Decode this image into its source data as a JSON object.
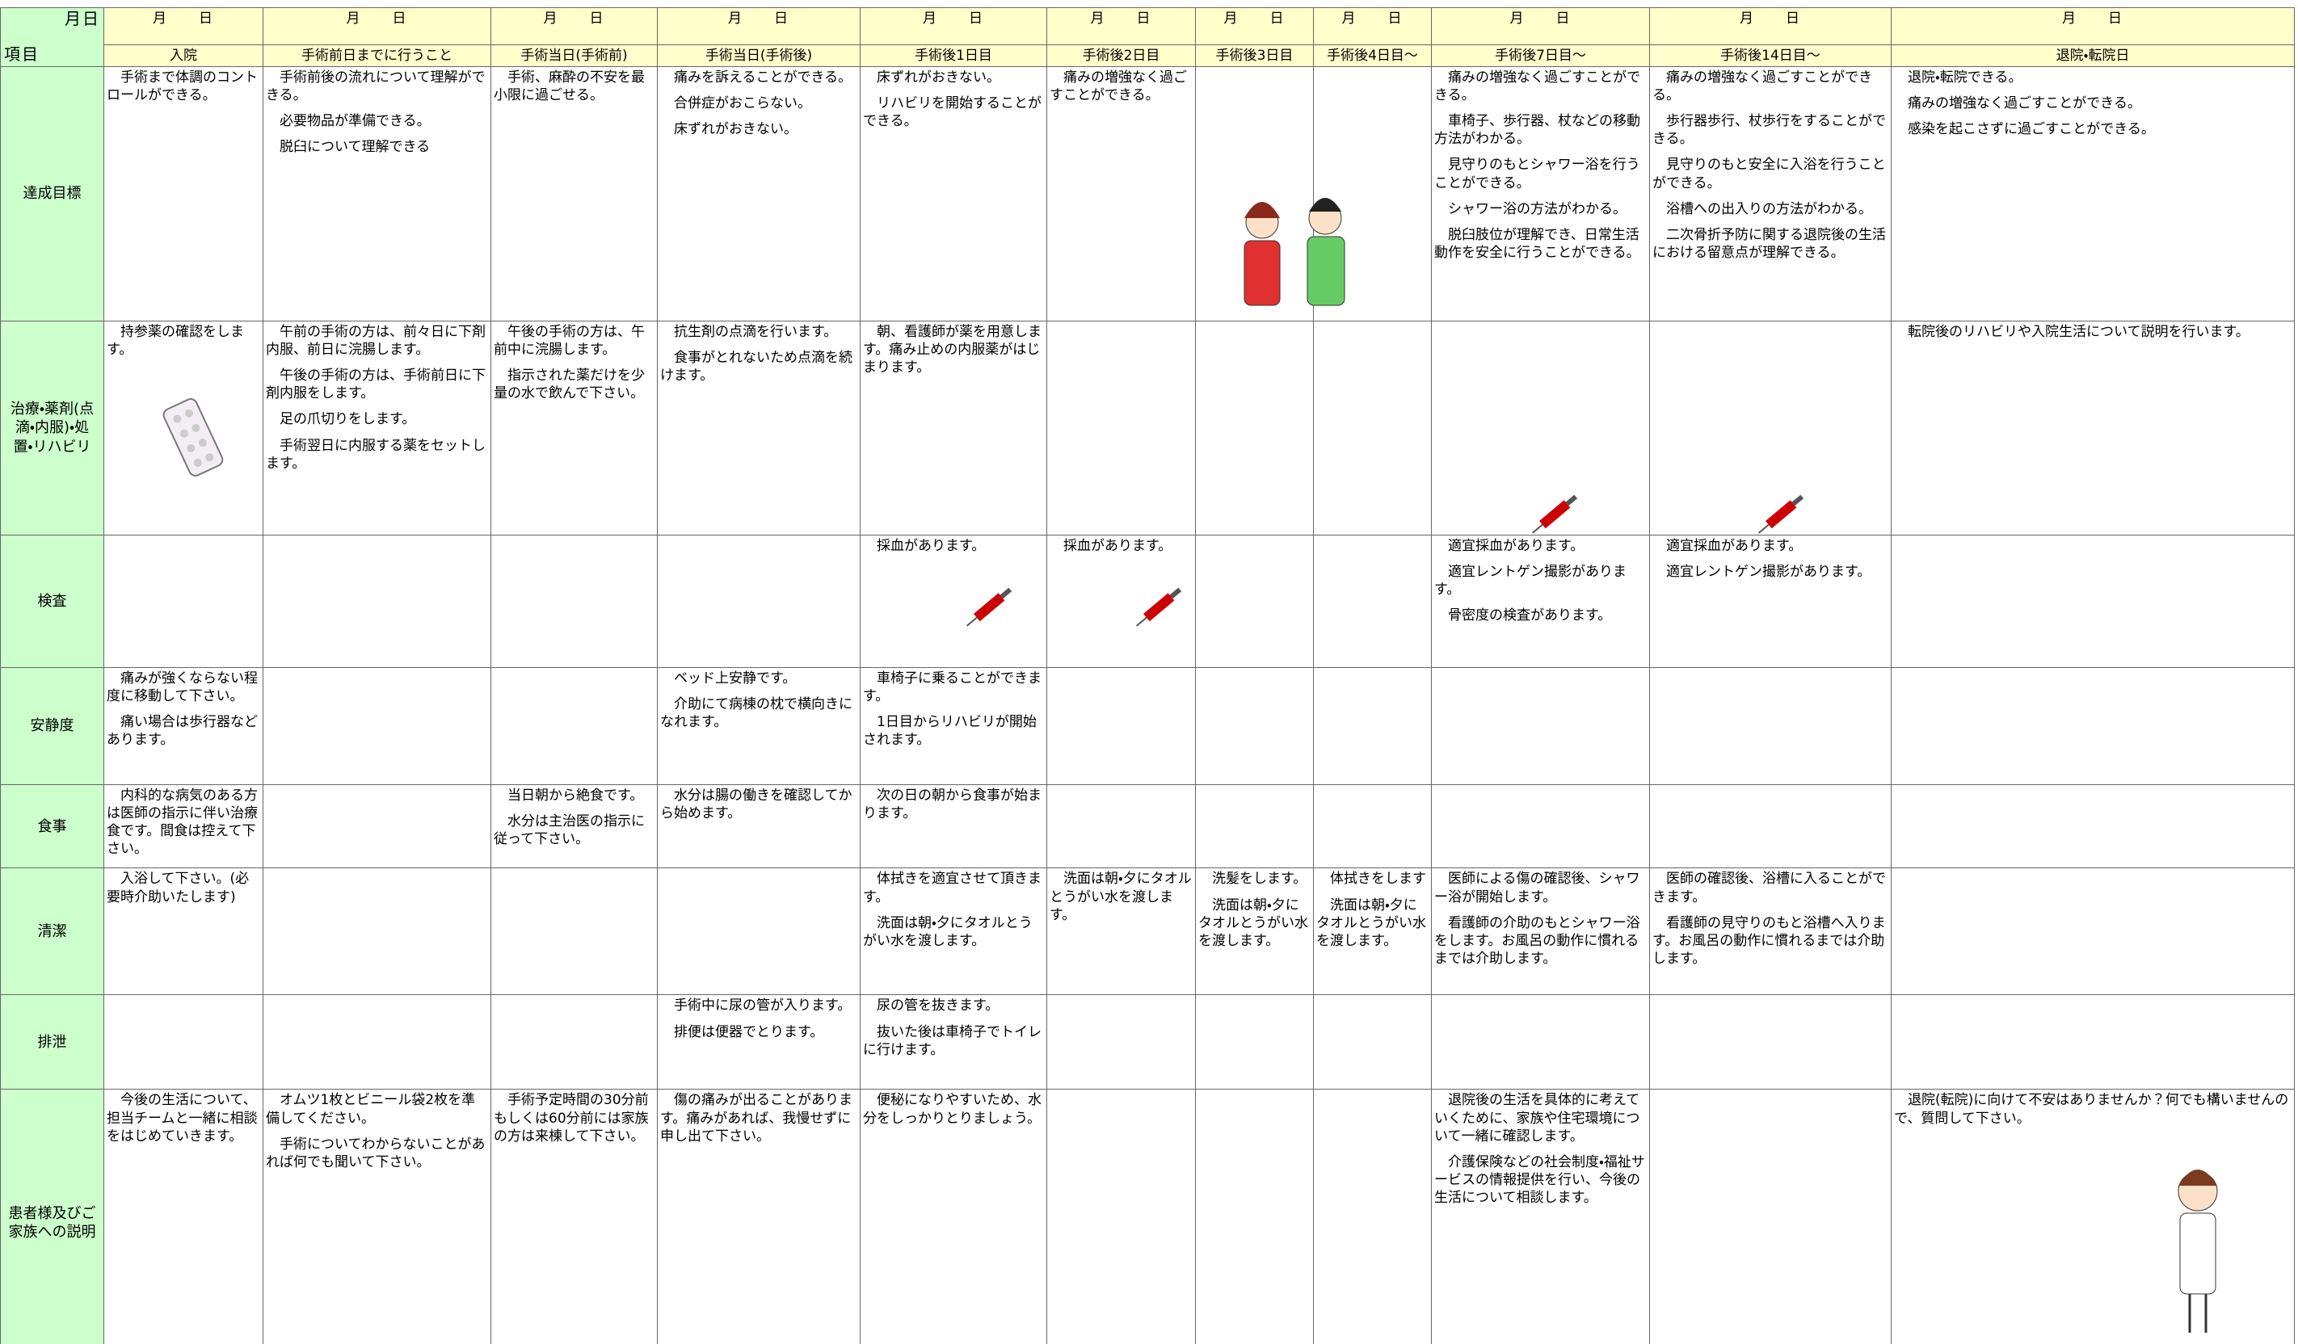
{
  "header": {
    "corner_top": "月日",
    "corner_bottom": "項目",
    "columns": [
      {
        "date": "月　　日",
        "title": "入院"
      },
      {
        "date": "月　　日",
        "title": "手術前日までに行うこと"
      },
      {
        "date": "月　　日",
        "title": "手術当日(手術前)"
      },
      {
        "date": "月　　日",
        "title": "手術当日(手術後)"
      },
      {
        "date": "月　　日",
        "title": "手術後1日目"
      },
      {
        "date": "月　　日",
        "title": "手術後2日目"
      },
      {
        "date": "月　　日",
        "title": "手術後3日目"
      },
      {
        "date": "月　　日",
        "title": "手術後4日目～"
      },
      {
        "date": "月　　日",
        "title": "手術後7日目～"
      },
      {
        "date": "月　　日",
        "title": "手術後14日目～"
      },
      {
        "date": "月　　日",
        "title": "退院・転院日"
      }
    ]
  },
  "rows": [
    {
      "label": "達成目標",
      "cells": [
        [
          "手術まで体調のコントロールができる。"
        ],
        [
          "手術前後の流れについて理解ができる。",
          "必要物品が準備できる。",
          "脱臼について理解できる"
        ],
        [
          "手術、麻酔の不安を最小限に過ごせる。"
        ],
        [
          "痛みを訴えることができる。",
          "合併症がおこらない。",
          "床ずれがおきない。"
        ],
        [
          "床ずれがおきない。",
          "リハビリを開始することができる。"
        ],
        [
          "痛みの増強なく過ごすことができる。"
        ],
        [],
        [],
        [
          "痛みの増強なく過ごすことができる。",
          "車椅子、歩行器、杖などの移動方法がわかる。",
          "見守りのもとシャワー浴を行うことができる。",
          "シャワー浴の方法がわかる。",
          "脱臼肢位が理解でき、日常生活動作を安全に行うことができる。"
        ],
        [
          "痛みの増強なく過ごすことができる。",
          "歩行器歩行、杖歩行をすることができる。",
          "見守りのもと安全に入浴を行うことができる。",
          "浴槽への出入りの方法がわかる。",
          "二次骨折予防に関する退院後の生活における留意点が理解できる。"
        ],
        [
          "退院・転院できる。",
          "痛みの増強なく過ごすことができる。",
          "感染を起こさずに過ごすことができる。"
        ]
      ]
    },
    {
      "label": "治療・薬剤(点滴・内服)・処置・リハビリ",
      "cells": [
        [
          "持参薬の確認をします。"
        ],
        [
          "午前の手術の方は、前々日に下剤内服、前日に浣腸します。",
          "午後の手術の方は、手術前日に下剤内服をします。",
          "足の爪切りをします。",
          "手術翌日に内服する薬をセットします。"
        ],
        [
          "午後の手術の方は、午前中に浣腸します。",
          "指示された薬だけを少量の水で飲んで下さい。"
        ],
        [
          "抗生剤の点滴を行います。",
          "食事がとれないため点滴を続けます。"
        ],
        [
          "朝、看護師が薬を用意します。痛み止めの内服薬がはじまります。"
        ],
        [],
        [],
        [],
        [],
        [],
        [
          "転院後のリハビリや入院生活について説明を行います。"
        ]
      ]
    },
    {
      "label": "検査",
      "cells": [
        [],
        [],
        [],
        [],
        [
          "採血があります。"
        ],
        [
          "採血があります。"
        ],
        [],
        [],
        [
          "適宜採血があります。",
          "適宜レントゲン撮影があります。",
          "骨密度の検査があります。"
        ],
        [
          "適宜採血があります。",
          "適宜レントゲン撮影があります。"
        ],
        []
      ]
    },
    {
      "label": "安静度",
      "cells": [
        [
          "痛みが強くならない程度に移動して下さい。",
          "痛い場合は歩行器などあります。"
        ],
        [],
        [],
        [
          "ベッド上安静です。",
          "介助にて病棟の枕で横向きになれます。"
        ],
        [
          "車椅子に乗ることができます。",
          "1日目からリハビリが開始されます。"
        ],
        [],
        [],
        [],
        [],
        [],
        []
      ]
    },
    {
      "label": "食事",
      "cells": [
        [
          "内科的な病気のある方は医師の指示に伴い治療食です。間食は控えて下さい。"
        ],
        [],
        [
          "当日朝から絶食です。",
          "水分は主治医の指示に従って下さい。"
        ],
        [
          "水分は腸の働きを確認してから始めます。"
        ],
        [
          "次の日の朝から食事が始まります。"
        ],
        [],
        [],
        [],
        [],
        [],
        []
      ]
    },
    {
      "label": "清潔",
      "cells": [
        [
          "入浴して下さい。(必要時介助いたします)"
        ],
        [],
        [],
        [],
        [
          "体拭きを適宜させて頂きます。",
          "洗面は朝・夕にタオルとうがい水を渡します。"
        ],
        [
          "洗面は朝・夕にタオルとうがい水を渡します。"
        ],
        [
          "洗髪をします。",
          "洗面は朝・夕にタオルとうがい水を渡します。"
        ],
        [
          "体拭きをします",
          "洗面は朝・夕にタオルとうがい水を渡します。"
        ],
        [
          "医師による傷の確認後、シャワー浴が開始します。",
          "看護師の介助のもとシャワー浴をします。お風呂の動作に慣れるまでは介助します。"
        ],
        [
          "医師の確認後、浴槽に入ることができます。",
          "看護師の見守りのもと浴槽へ入ります。お風呂の動作に慣れるまでは介助します。"
        ],
        []
      ]
    },
    {
      "label": "排泄",
      "cells": [
        [],
        [],
        [],
        [
          "手術中に尿の管が入ります。",
          "排便は便器でとります。"
        ],
        [
          "尿の管を抜きます。",
          "抜いた後は車椅子でトイレに行けます。"
        ],
        [],
        [],
        [],
        [],
        [],
        []
      ]
    },
    {
      "label": "患者様及びご家族への説明",
      "cells": [
        [
          "今後の生活について、担当チームと一緒に相談をはじめていきます。"
        ],
        [
          "オムツ1枚とビニール袋2枚を準備してください。",
          "手術についてわからないことがあれば何でも聞いて下さい。"
        ],
        [
          "手術予定時間の30分前もしくは60分前には家族の方は来棟して下さい。"
        ],
        [
          "傷の痛みが出ることがあります。痛みがあれば、我慢せずに申し出て下さい。"
        ],
        [
          "便秘になりやすいため、水分をしっかりとりましょう。"
        ],
        [],
        [],
        [],
        [
          "退院後の生活を具体的に考えていくために、家族や住宅環境について一緒に確認します。",
          "介護保険などの社会制度・福祉サービスの情報提供を行い、今後の生活について相談します。"
        ],
        [],
        [
          "退院(転院)に向けて不安はありませんか？何でも構いませんので、質問して下さい。"
        ]
      ]
    }
  ]
}
